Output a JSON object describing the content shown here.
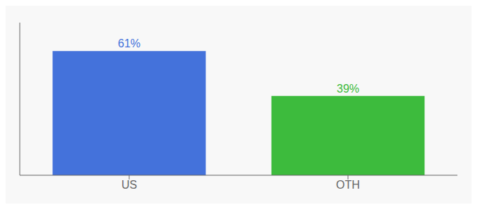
{
  "chart_data": {
    "type": "bar",
    "categories": [
      "US",
      "OTH"
    ],
    "values": [
      61,
      39
    ],
    "value_labels": [
      "61%",
      "39%"
    ],
    "colors": [
      "#4472db",
      "#3dbb3d"
    ],
    "ylim": [
      0,
      75
    ],
    "data_labels": true,
    "tick_labels": "x",
    "grid": false
  }
}
